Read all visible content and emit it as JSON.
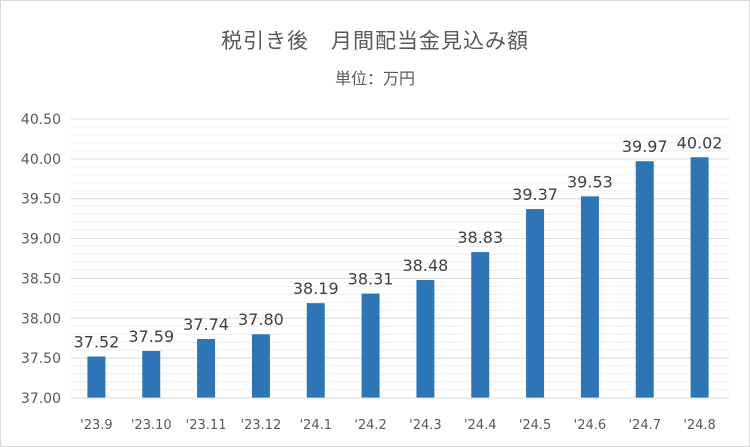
{
  "chart_data": {
    "type": "bar",
    "title": "税引き後　月間配当金見込み額",
    "subtitle": "単位：万円",
    "categories": [
      "'23.9",
      "'23.10",
      "'23.11",
      "'23.12",
      "'24.1",
      "'24.2",
      "'24.3",
      "'24.4",
      "'24.5",
      "'24.6",
      "'24.7",
      "'24.8"
    ],
    "values": [
      37.52,
      37.59,
      37.74,
      37.8,
      38.19,
      38.31,
      38.48,
      38.83,
      39.37,
      39.53,
      39.97,
      40.02
    ],
    "value_labels": [
      "37.52",
      "37.59",
      "37.74",
      "37.80",
      "38.19",
      "38.31",
      "38.48",
      "38.83",
      "39.37",
      "39.53",
      "39.97",
      "40.02"
    ],
    "ylim": [
      37.0,
      40.5
    ],
    "y_ticks": [
      "37.00",
      "37.50",
      "38.00",
      "38.50",
      "39.00",
      "39.50",
      "40.00",
      "40.50"
    ],
    "grid": true,
    "legend": "none",
    "colors": {
      "bar": "#2e75b6",
      "grid": "#d9d9d9",
      "text": "#595959",
      "label": "#404040"
    }
  }
}
